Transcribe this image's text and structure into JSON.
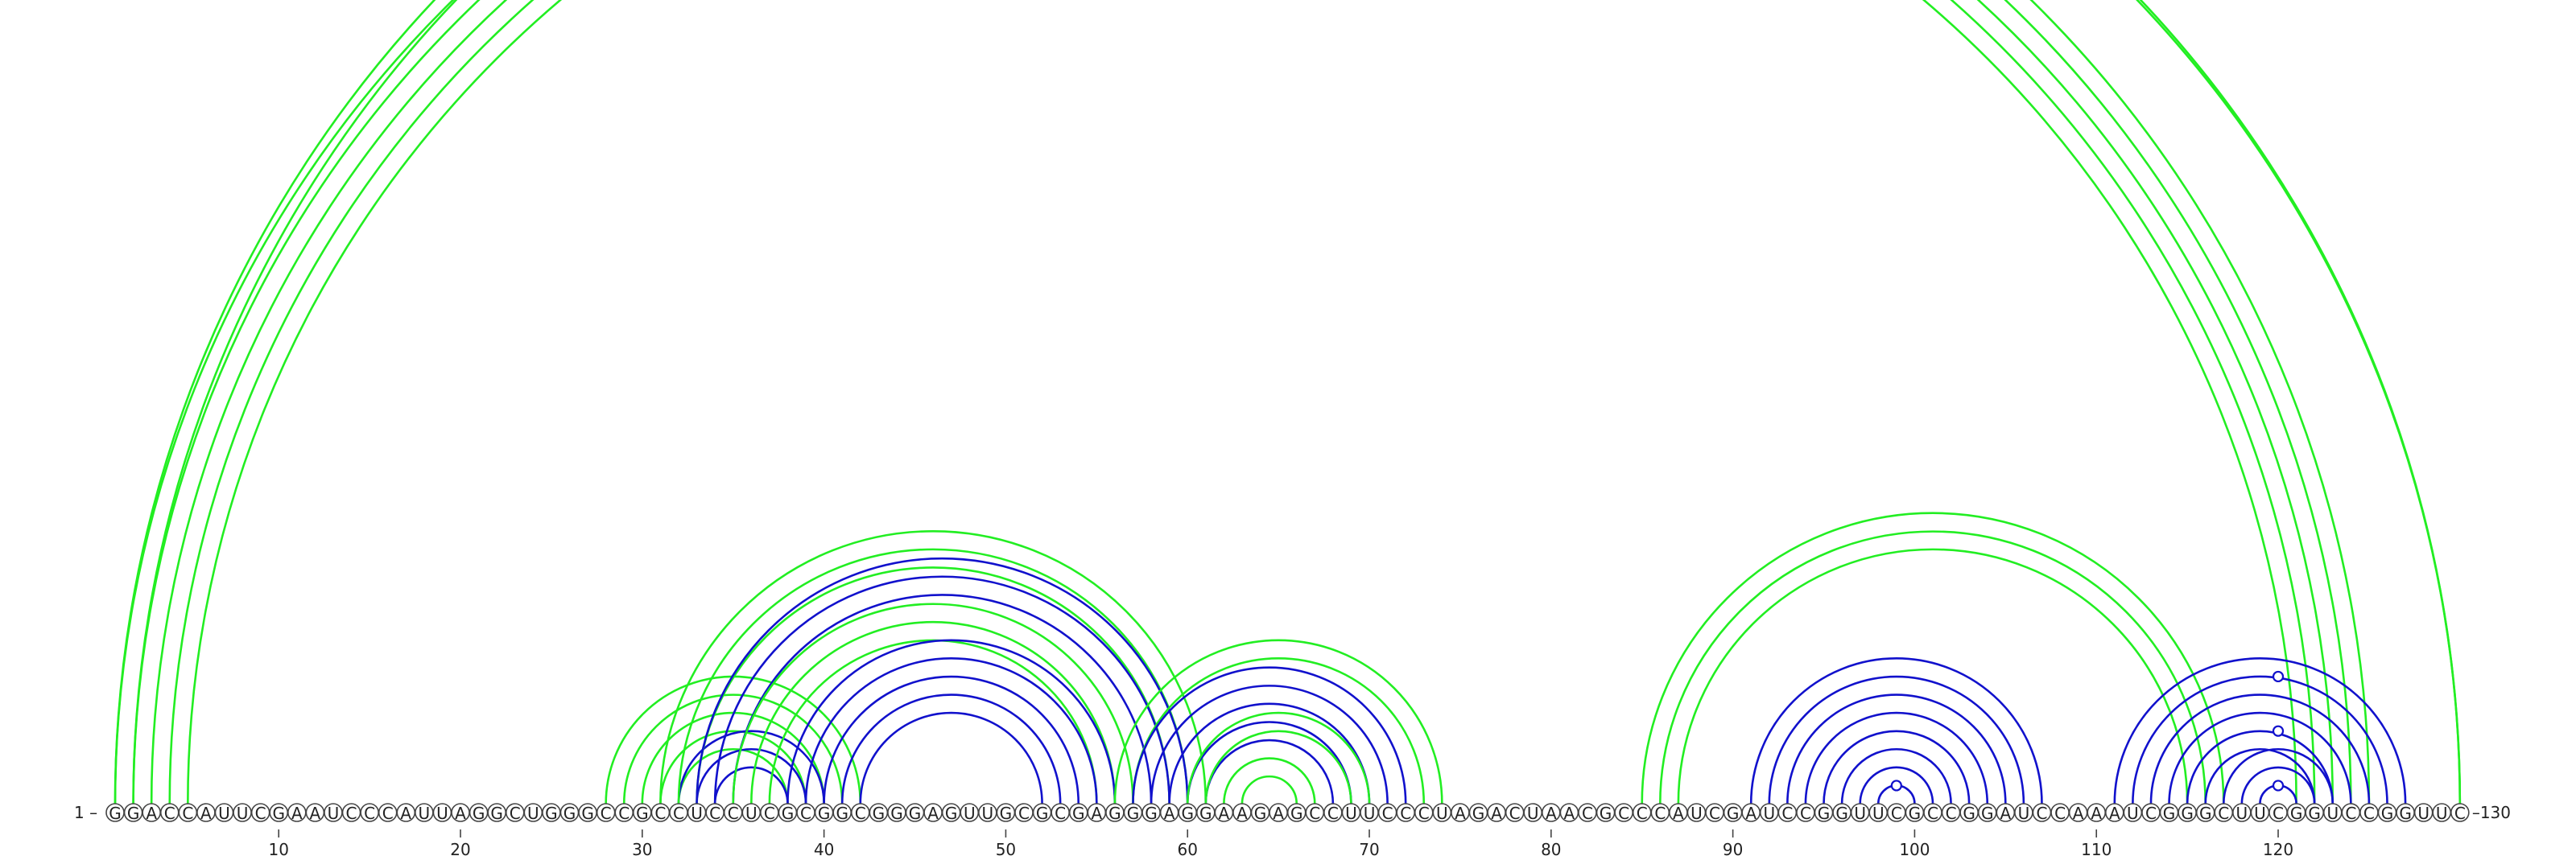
{
  "sequence": "GGACCAUUCGAAUCCCAUUAGGCUGGGCCGCCUCCUCGCGGCGGGAGUUGCGCGAGGGAGGAAGAGCCUUCCCUAGACUAACGCCCAUCGAUCCGGUUCGCCGGAUCCAAAUCGGGCUUCGGUCCGGUUC",
  "start_label": "1",
  "end_label": "130",
  "ticks": [
    10,
    20,
    30,
    40,
    50,
    60,
    70,
    80,
    90,
    100,
    110,
    120
  ],
  "colors": {
    "green": "#22ee22",
    "blue": "#1111cc"
  },
  "arc_groups": [
    {
      "color": "green",
      "pairs": [
        [
          1,
          125
        ],
        [
          2,
          124
        ],
        [
          3,
          123
        ],
        [
          4,
          122
        ],
        [
          5,
          121
        ]
      ]
    },
    {
      "color": "green",
      "pairs": [
        [
          1,
          130
        ],
        [
          2,
          130
        ]
      ],
      "marker_on": [
        [
          1,
          130
        ]
      ]
    },
    {
      "color": "green",
      "pairs": [
        [
          28,
          42
        ],
        [
          29,
          41
        ],
        [
          30,
          40
        ],
        [
          31,
          39
        ],
        [
          32,
          38
        ]
      ]
    },
    {
      "color": "blue",
      "pairs": [
        [
          33,
          39
        ],
        [
          34,
          38
        ],
        [
          32,
          40
        ]
      ]
    },
    {
      "color": "green",
      "pairs": [
        [
          31,
          61
        ],
        [
          32,
          60
        ],
        [
          33,
          59
        ]
      ]
    },
    {
      "color": "blue",
      "pairs": [
        [
          33,
          60
        ],
        [
          34,
          59
        ],
        [
          35,
          58
        ]
      ]
    },
    {
      "color": "green",
      "pairs": [
        [
          35,
          57
        ],
        [
          36,
          56
        ],
        [
          37,
          55
        ]
      ]
    },
    {
      "color": "blue",
      "pairs": [
        [
          38,
          56
        ],
        [
          39,
          55
        ],
        [
          40,
          54
        ],
        [
          41,
          53
        ],
        [
          42,
          52
        ]
      ]
    },
    {
      "color": "green",
      "pairs": [
        [
          56,
          74
        ],
        [
          57,
          73
        ]
      ]
    },
    {
      "color": "blue",
      "pairs": [
        [
          57,
          72
        ],
        [
          58,
          71
        ],
        [
          59,
          70
        ],
        [
          60,
          69
        ],
        [
          61,
          68
        ]
      ]
    },
    {
      "color": "green",
      "pairs": [
        [
          60,
          70
        ],
        [
          61,
          69
        ],
        [
          62,
          67
        ],
        [
          63,
          66
        ]
      ]
    },
    {
      "color": "green",
      "pairs": [
        [
          85,
          117
        ],
        [
          86,
          116
        ],
        [
          87,
          115
        ]
      ]
    },
    {
      "color": "blue",
      "pairs": [
        [
          91,
          107
        ],
        [
          92,
          106
        ],
        [
          93,
          105
        ],
        [
          94,
          104
        ],
        [
          95,
          103
        ],
        [
          96,
          102
        ],
        [
          97,
          101
        ],
        [
          98,
          100
        ]
      ],
      "marker_on": [
        [
          98,
          100
        ]
      ]
    },
    {
      "color": "blue",
      "pairs": [
        [
          111,
          127
        ],
        [
          112,
          126
        ],
        [
          113,
          125
        ],
        [
          114,
          124
        ],
        [
          115,
          123
        ],
        [
          116,
          122
        ],
        [
          117,
          123
        ],
        [
          118,
          122
        ],
        [
          119,
          121
        ]
      ],
      "marker_on": [
        [
          113,
          127
        ],
        [
          116,
          124
        ],
        [
          119,
          121
        ]
      ]
    }
  ]
}
